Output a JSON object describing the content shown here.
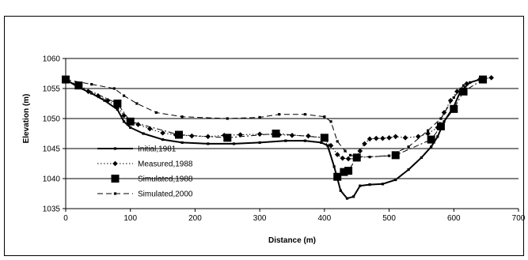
{
  "chart_data": {
    "type": "line",
    "xlabel": "Distance (m)",
    "ylabel": "Elevation (m)",
    "xlim": [
      0,
      700
    ],
    "ylim": [
      1035,
      1060
    ],
    "x_ticks": [
      0,
      100,
      200,
      300,
      400,
      500,
      600,
      700
    ],
    "y_ticks": [
      1035,
      1040,
      1045,
      1050,
      1055,
      1060
    ],
    "grid": "horizontal",
    "legend_position": "bottom-left",
    "series": [
      {
        "name": "Initial,1981",
        "style": "solid",
        "marker": "small-square",
        "color": "#000000",
        "points": [
          [
            0,
            1056.5
          ],
          [
            20,
            1055.2
          ],
          [
            40,
            1054.2
          ],
          [
            60,
            1053
          ],
          [
            80,
            1051.5
          ],
          [
            90,
            1049.5
          ],
          [
            100,
            1048.5
          ],
          [
            120,
            1047.5
          ],
          [
            150,
            1046.5
          ],
          [
            180,
            1046
          ],
          [
            220,
            1045.8
          ],
          [
            260,
            1045.8
          ],
          [
            300,
            1046
          ],
          [
            340,
            1046.3
          ],
          [
            370,
            1046.3
          ],
          [
            395,
            1046
          ],
          [
            405,
            1045.5
          ],
          [
            415,
            1042
          ],
          [
            425,
            1038
          ],
          [
            435,
            1036.7
          ],
          [
            445,
            1037
          ],
          [
            455,
            1038.8
          ],
          [
            470,
            1039
          ],
          [
            490,
            1039.1
          ],
          [
            510,
            1039.8
          ],
          [
            530,
            1041.5
          ],
          [
            550,
            1043.5
          ],
          [
            565,
            1045.3
          ],
          [
            575,
            1047
          ],
          [
            585,
            1049.5
          ],
          [
            600,
            1052
          ],
          [
            610,
            1054.5
          ],
          [
            625,
            1056
          ],
          [
            640,
            1056.5
          ]
        ]
      },
      {
        "name": "Measured,1988",
        "style": "dotted",
        "marker": "diamond",
        "color": "#000000",
        "points": [
          [
            0,
            1056.5
          ],
          [
            20,
            1055.3
          ],
          [
            35,
            1054.5
          ],
          [
            50,
            1053.8
          ],
          [
            65,
            1053
          ],
          [
            80,
            1052
          ],
          [
            90,
            1050.5
          ],
          [
            100,
            1049.5
          ],
          [
            112,
            1049
          ],
          [
            130,
            1048.3
          ],
          [
            150,
            1047.6
          ],
          [
            170,
            1047.3
          ],
          [
            195,
            1047.1
          ],
          [
            220,
            1047
          ],
          [
            245,
            1047.2
          ],
          [
            270,
            1047.3
          ],
          [
            300,
            1047.4
          ],
          [
            330,
            1047.3
          ],
          [
            350,
            1047.2
          ],
          [
            375,
            1047.1
          ],
          [
            398,
            1046.8
          ],
          [
            410,
            1045.5
          ],
          [
            420,
            1044
          ],
          [
            428,
            1043.4
          ],
          [
            437,
            1043.3
          ],
          [
            447,
            1043.3
          ],
          [
            455,
            1044.6
          ],
          [
            462,
            1045.8
          ],
          [
            470,
            1046.6
          ],
          [
            480,
            1046.7
          ],
          [
            490,
            1046.7
          ],
          [
            500,
            1046.8
          ],
          [
            510,
            1047
          ],
          [
            525,
            1046.8
          ],
          [
            545,
            1047
          ],
          [
            560,
            1047.5
          ],
          [
            575,
            1048.5
          ],
          [
            585,
            1051
          ],
          [
            595,
            1053
          ],
          [
            605,
            1054.5
          ],
          [
            620,
            1055.8
          ],
          [
            640,
            1056.5
          ],
          [
            658,
            1056.8
          ]
        ]
      },
      {
        "name": "Simulated,1988",
        "style": "dash-dot",
        "marker": "large-square",
        "color": "#000000",
        "points": [
          [
            0,
            1056.5
          ],
          [
            20,
            1055.5
          ],
          [
            80,
            1052.5
          ],
          [
            100,
            1049.5
          ],
          [
            175,
            1047.3
          ],
          [
            250,
            1046.8
          ],
          [
            325,
            1047.5
          ],
          [
            400,
            1046.8
          ],
          [
            420,
            1040.3
          ],
          [
            430,
            1041.1
          ],
          [
            437,
            1041.3
          ],
          [
            450,
            1043.5
          ],
          [
            510,
            1043.9
          ],
          [
            565,
            1046.5
          ],
          [
            580,
            1048.7
          ],
          [
            600,
            1051.6
          ],
          [
            615,
            1054.5
          ],
          [
            645,
            1056.5
          ]
        ]
      },
      {
        "name": "Simulated,2000",
        "style": "dashed",
        "marker": "small-square",
        "color": "#000000",
        "points": [
          [
            0,
            1056.5
          ],
          [
            40,
            1055.7
          ],
          [
            75,
            1055
          ],
          [
            90,
            1053.8
          ],
          [
            110,
            1052.5
          ],
          [
            140,
            1051
          ],
          [
            180,
            1050.3
          ],
          [
            250,
            1050
          ],
          [
            300,
            1050.2
          ],
          [
            330,
            1050.7
          ],
          [
            370,
            1050.7
          ],
          [
            400,
            1050.3
          ],
          [
            410,
            1049.5
          ],
          [
            420,
            1046.2
          ],
          [
            432,
            1044.6
          ],
          [
            440,
            1043.9
          ],
          [
            450,
            1043.7
          ],
          [
            470,
            1043.6
          ],
          [
            500,
            1043.8
          ],
          [
            530,
            1045.3
          ],
          [
            560,
            1048
          ],
          [
            580,
            1050
          ],
          [
            600,
            1053.5
          ],
          [
            615,
            1055.5
          ],
          [
            640,
            1056.5
          ]
        ]
      }
    ]
  }
}
